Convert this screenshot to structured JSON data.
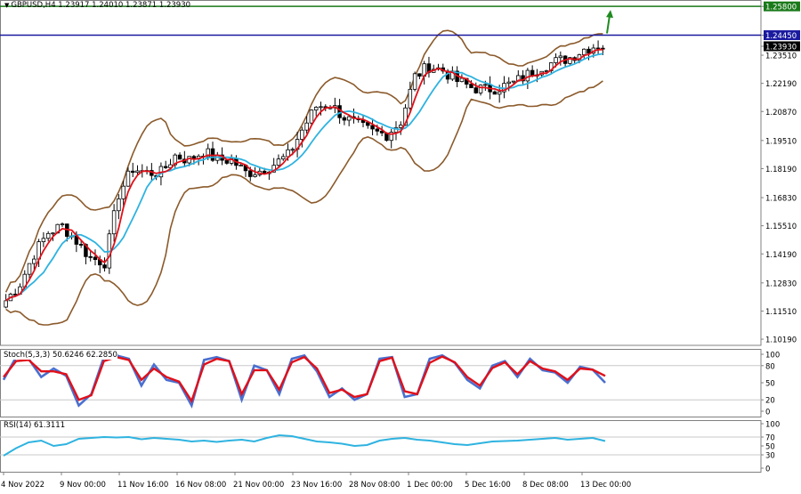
{
  "header": {
    "title": "GBPUSD,H4  1.23917 1.24010 1.23871 1.23930"
  },
  "stoch_panel": {
    "label": "Stoch(5,3,3) 50.6246 62.2850"
  },
  "rsi_panel": {
    "label": "RSI(14) 61.3111"
  },
  "colors": {
    "candle": "#000000",
    "fast_ma": "#e0101a",
    "slow_ma": "#2eb3e0",
    "bollinger": "#8b5a2b",
    "hline_green": "#1a7a1a",
    "hline_blue": "#1a1aa0",
    "arrow": "#1f8a1f",
    "stoch_main": "#4a6fd0",
    "stoch_signal": "#e0101a",
    "rsi": "#2eb3e0",
    "level_line": "#c8c8c8",
    "grid_border": "#808080"
  },
  "chart_data": [
    {
      "type": "candlestick",
      "symbol": "GBPUSD",
      "timeframe": "H4",
      "ohlc": [
        1.23917,
        1.2401,
        1.23871,
        1.2393
      ],
      "ylim": [
        1.099,
        1.261
      ],
      "y_ticks": [
        1.258,
        1.2445,
        1.2393,
        1.2351,
        1.2219,
        1.2087,
        1.1951,
        1.1819,
        1.1683,
        1.1551,
        1.1419,
        1.1283,
        1.1151,
        1.1019
      ],
      "y_tick_labels": [
        "1.25800",
        "1.24450",
        "1.23930",
        "1.23510",
        "1.22190",
        "1.20870",
        "1.19510",
        "1.18190",
        "1.16830",
        "1.15510",
        "1.14190",
        "1.12830",
        "1.11510",
        "1.10190"
      ],
      "highlighted_ticks": {
        "1.25800": {
          "bg": "#1a7a1a",
          "fg": "#ffffff"
        },
        "1.24450": {
          "bg": "#1a1aa0",
          "fg": "#ffffff"
        },
        "1.23930": {
          "bg": "#000000",
          "fg": "#ffffff"
        }
      },
      "x_labels": [
        "4 Nov 2022",
        "9 Nov 00:00",
        "11 Nov 16:00",
        "16 Nov 08:00",
        "21 Nov 00:00",
        "23 Nov 16:00",
        "28 Nov 08:00",
        "1 Dec 00:00",
        "5 Dec 16:00",
        "8 Dec 08:00",
        "13 Dec 00:00"
      ],
      "horizontal_lines": [
        {
          "value": 1.258,
          "color": "#1a7a1a"
        },
        {
          "value": 1.2445,
          "color": "#1a1aa0"
        }
      ],
      "close_path": [
        [
          0,
          1.12
        ],
        [
          3,
          1.128
        ],
        [
          6,
          1.142
        ],
        [
          9,
          1.152
        ],
        [
          12,
          1.155
        ],
        [
          15,
          1.148
        ],
        [
          18,
          1.14
        ],
        [
          21,
          1.138
        ],
        [
          24,
          1.17
        ],
        [
          27,
          1.182
        ],
        [
          30,
          1.18
        ],
        [
          33,
          1.18
        ],
        [
          36,
          1.188
        ],
        [
          39,
          1.186
        ],
        [
          42,
          1.19
        ],
        [
          45,
          1.186
        ],
        [
          48,
          1.186
        ],
        [
          51,
          1.18
        ],
        [
          54,
          1.181
        ],
        [
          57,
          1.184
        ],
        [
          60,
          1.188
        ],
        [
          63,
          1.2
        ],
        [
          66,
          1.211
        ],
        [
          69,
          1.212
        ],
        [
          72,
          1.206
        ],
        [
          75,
          1.202
        ],
        [
          78,
          1.199
        ],
        [
          81,
          1.198
        ],
        [
          84,
          1.204
        ],
        [
          87,
          1.225
        ],
        [
          90,
          1.23
        ],
        [
          93,
          1.228
        ],
        [
          96,
          1.223
        ],
        [
          99,
          1.22
        ],
        [
          102,
          1.219
        ],
        [
          105,
          1.22
        ],
        [
          108,
          1.222
        ],
        [
          111,
          1.226
        ],
        [
          114,
          1.23
        ],
        [
          117,
          1.232
        ],
        [
          120,
          1.234
        ],
        [
          123,
          1.238
        ],
        [
          126,
          1.24
        ],
        [
          127,
          1.2393
        ]
      ],
      "series": [
        {
          "name": "",
          "role": "fast_ma"
        },
        {
          "name": "",
          "role": "slow_ma"
        },
        {
          "name": "",
          "role": "bollinger_bands"
        }
      ]
    },
    {
      "type": "line",
      "panel": "stochastic",
      "ylim": [
        0,
        100
      ],
      "y_ticks": [
        100,
        80,
        50,
        20,
        0
      ],
      "levels": [
        80,
        20
      ],
      "main": [
        55,
        95,
        92,
        60,
        75,
        62,
        10,
        30,
        95,
        98,
        92,
        45,
        82,
        55,
        50,
        10,
        90,
        95,
        88,
        20,
        80,
        72,
        30,
        92,
        98,
        70,
        25,
        40,
        20,
        30,
        92,
        95,
        25,
        30,
        92,
        98,
        85,
        55,
        40,
        80,
        88,
        60,
        92,
        72,
        68,
        50,
        78,
        73,
        50
      ],
      "signal": [
        60,
        88,
        90,
        70,
        70,
        65,
        20,
        28,
        88,
        95,
        90,
        55,
        75,
        60,
        52,
        18,
        82,
        92,
        88,
        30,
        72,
        72,
        38,
        86,
        95,
        75,
        32,
        38,
        25,
        30,
        88,
        94,
        35,
        30,
        85,
        96,
        86,
        60,
        45,
        76,
        86,
        65,
        88,
        75,
        70,
        55,
        75,
        73,
        62
      ]
    },
    {
      "type": "line",
      "panel": "rsi",
      "ylim": [
        0,
        100
      ],
      "y_ticks": [
        100,
        70,
        50,
        30,
        0
      ],
      "levels": [
        70,
        30
      ],
      "values": [
        28,
        45,
        58,
        62,
        50,
        54,
        66,
        68,
        70,
        69,
        70,
        65,
        68,
        66,
        64,
        60,
        62,
        59,
        62,
        64,
        60,
        68,
        74,
        72,
        66,
        60,
        58,
        55,
        50,
        52,
        62,
        66,
        68,
        64,
        62,
        58,
        54,
        52,
        56,
        60,
        61,
        62,
        64,
        66,
        68,
        64,
        66,
        68,
        61
      ]
    }
  ]
}
